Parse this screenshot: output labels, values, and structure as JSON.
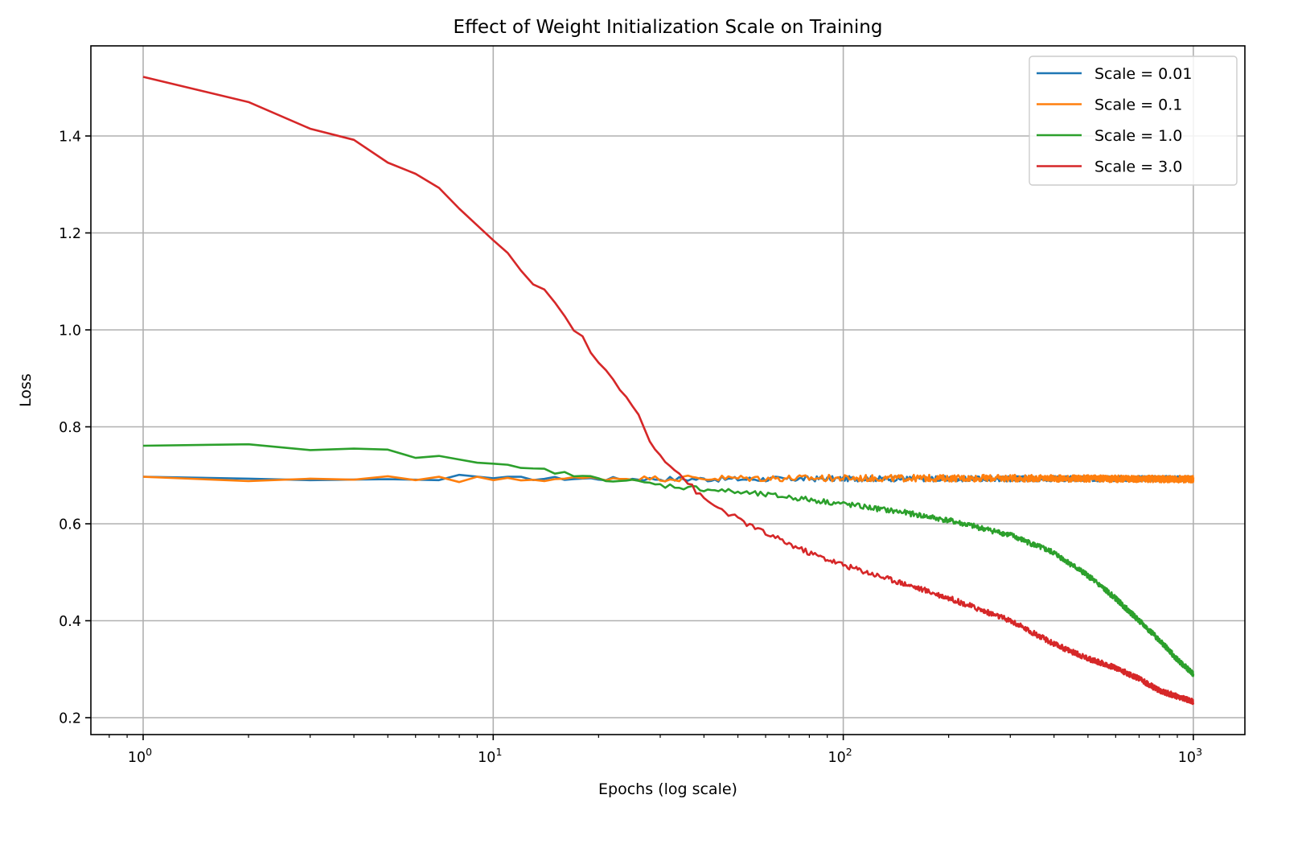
{
  "chart_data": {
    "type": "line",
    "title": "Effect of Weight Initialization Scale on Training",
    "xlabel": "Epochs (log scale)",
    "ylabel": "Loss",
    "xscale": "log",
    "xlim": [
      0.74,
      1350
    ],
    "ylim": [
      0.17,
      1.58
    ],
    "xticks": [
      {
        "value": 1,
        "base": "10",
        "exp": "0"
      },
      {
        "value": 10,
        "base": "10",
        "exp": "1"
      },
      {
        "value": 100,
        "base": "10",
        "exp": "2"
      },
      {
        "value": 1000,
        "base": "10",
        "exp": "3"
      }
    ],
    "yticks": [
      0.2,
      0.4,
      0.6,
      0.8,
      1.0,
      1.2,
      1.4
    ],
    "ytick_labels": [
      "0.2",
      "0.4",
      "0.6",
      "0.8",
      "1.0",
      "1.2",
      "1.4"
    ],
    "grid": true,
    "legend_position": "top-right",
    "epochs_range": [
      1,
      1000
    ],
    "series": [
      {
        "name": "Scale = 0.01",
        "color": "#1f77b4",
        "anchors": [
          [
            1,
            0.697
          ],
          [
            2,
            0.693
          ],
          [
            3,
            0.69
          ],
          [
            5,
            0.692
          ],
          [
            7,
            0.69
          ],
          [
            8,
            0.701
          ],
          [
            10,
            0.694
          ],
          [
            20,
            0.693
          ],
          [
            50,
            0.692
          ],
          [
            100,
            0.693
          ],
          [
            300,
            0.693
          ],
          [
            1000,
            0.693
          ]
        ],
        "noise": 0.004
      },
      {
        "name": "Scale = 0.1",
        "color": "#ff7f0e",
        "anchors": [
          [
            1,
            0.697
          ],
          [
            2,
            0.688
          ],
          [
            3,
            0.693
          ],
          [
            4,
            0.691
          ],
          [
            5,
            0.698
          ],
          [
            6,
            0.69
          ],
          [
            7,
            0.697
          ],
          [
            8,
            0.686
          ],
          [
            9,
            0.697
          ],
          [
            10,
            0.69
          ],
          [
            20,
            0.694
          ],
          [
            50,
            0.694
          ],
          [
            100,
            0.694
          ],
          [
            300,
            0.694
          ],
          [
            1000,
            0.692
          ]
        ],
        "noise": 0.005
      },
      {
        "name": "Scale = 1.0",
        "color": "#2ca02c",
        "anchors": [
          [
            1,
            0.761
          ],
          [
            2,
            0.764
          ],
          [
            3,
            0.752
          ],
          [
            4,
            0.755
          ],
          [
            5,
            0.753
          ],
          [
            6,
            0.736
          ],
          [
            7,
            0.74
          ],
          [
            9,
            0.726
          ],
          [
            10,
            0.724
          ],
          [
            12,
            0.713
          ],
          [
            14,
            0.711
          ],
          [
            17,
            0.7
          ],
          [
            20,
            0.693
          ],
          [
            25,
            0.688
          ],
          [
            30,
            0.68
          ],
          [
            40,
            0.672
          ],
          [
            50,
            0.665
          ],
          [
            70,
            0.655
          ],
          [
            100,
            0.641
          ],
          [
            150,
            0.623
          ],
          [
            200,
            0.607
          ],
          [
            300,
            0.577
          ],
          [
            400,
            0.54
          ],
          [
            500,
            0.493
          ],
          [
            600,
            0.446
          ],
          [
            700,
            0.4
          ],
          [
            800,
            0.36
          ],
          [
            900,
            0.32
          ],
          [
            1000,
            0.29
          ]
        ],
        "noise": 0.004
      },
      {
        "name": "Scale = 3.0",
        "color": "#d62728",
        "anchors": [
          [
            1,
            1.522
          ],
          [
            2,
            1.47
          ],
          [
            3,
            1.415
          ],
          [
            4,
            1.392
          ],
          [
            5,
            1.345
          ],
          [
            6,
            1.322
          ],
          [
            7,
            1.293
          ],
          [
            8,
            1.25
          ],
          [
            10,
            1.185
          ],
          [
            11,
            1.155
          ],
          [
            13,
            1.097
          ],
          [
            14,
            1.083
          ],
          [
            16,
            1.03
          ],
          [
            17,
            0.997
          ],
          [
            18,
            0.985
          ],
          [
            20,
            0.93
          ],
          [
            22,
            0.897
          ],
          [
            24,
            0.86
          ],
          [
            26,
            0.825
          ],
          [
            28,
            0.772
          ],
          [
            30,
            0.742
          ],
          [
            33,
            0.713
          ],
          [
            36,
            0.685
          ],
          [
            40,
            0.65
          ],
          [
            50,
            0.61
          ],
          [
            60,
            0.58
          ],
          [
            80,
            0.54
          ],
          [
            100,
            0.515
          ],
          [
            150,
            0.476
          ],
          [
            200,
            0.447
          ],
          [
            300,
            0.4
          ],
          [
            400,
            0.352
          ],
          [
            500,
            0.322
          ],
          [
            600,
            0.303
          ],
          [
            700,
            0.28
          ],
          [
            800,
            0.256
          ],
          [
            1000,
            0.233
          ]
        ],
        "noise": 0.004
      }
    ]
  }
}
